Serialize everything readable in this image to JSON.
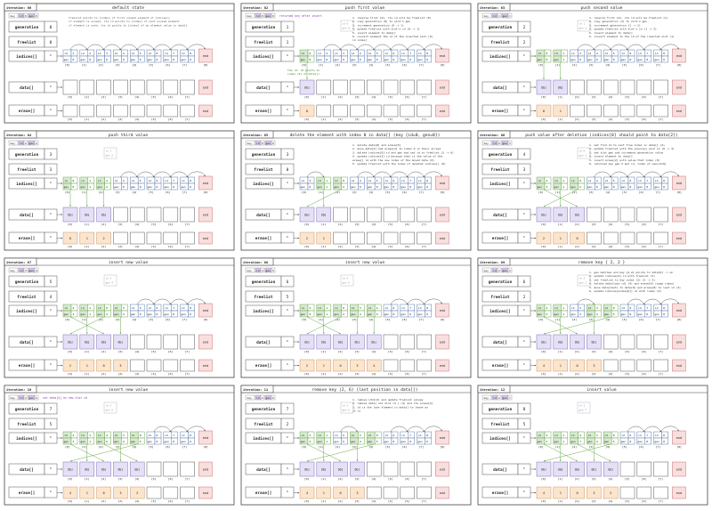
{
  "labels": {
    "generation": "generation",
    "freelist": "freelist",
    "indices": "indices[]",
    "data": "data[]",
    "erase": "erase[]",
    "end": "end",
    "key": "key",
    "id": "id",
    "gen": "gen",
    "obj": "Obj"
  },
  "colors": {
    "green_fill": "#d9ead3",
    "green_stroke": "#6aa84f",
    "purple_fill": "#e6e0f7",
    "purple_stroke": "#7f6fb5",
    "orange_fill": "#fce5cd",
    "orange_stroke": "#c9956b",
    "pink_fill": "#f9dede",
    "pink_stroke": "#cc6f6f",
    "key_purple": "#d9c6f0",
    "note_purple": "#8e44ad",
    "note_green": "#38761d",
    "grey_text": "#999999"
  },
  "panels": [
    {
      "iteration": "iteration: 00",
      "title": "default state",
      "key": {
        "id": "id",
        "idval": "0",
        "gen": "gen",
        "genval": "0"
      },
      "generation": "0",
      "freelist": "0",
      "note": "freelist points to [index] of first unused element of indices[]\n if element is unused, its id points to [index] of next unused element\n if element is used, its id points to [index] of an element value in data[]",
      "note_color": "#555555",
      "used": 0,
      "indices": [
        {
          "id": "1",
          "gen": "0"
        },
        {
          "id": "2",
          "gen": "0"
        },
        {
          "id": "3",
          "gen": "0"
        },
        {
          "id": "4",
          "gen": "0"
        },
        {
          "id": "5",
          "gen": "0"
        },
        {
          "id": "6",
          "gen": "0"
        },
        {
          "id": "7",
          "gen": "0"
        },
        {
          "id": "8",
          "gen": "0"
        }
      ],
      "indices_green": [],
      "data_count": 0,
      "erase": []
    },
    {
      "iteration": "iteration: 02",
      "title": "push first value",
      "key": {
        "id": "id",
        "idval": "0",
        "gen": "gen",
        "genval": "0"
      },
      "key_note": "returned key after insert",
      "generation": "1",
      "freelist": "1",
      "side_key": {
        "id": "id",
        "idval": "0",
        "gen": "gen",
        "genval": "0"
      },
      "note": "1. reserve first idx, its id will be freelist (0)\n2. copy generation (0) to slot's gen\n3. increment generation (0 -> 1)\n4. update freelist with slot's id (0 -> 1)\n5. insert element to data[]\n6. convert element the id of the inserted slot (0)\n   id index]",
      "note_color": "#333333",
      "green_note": "the id: (0 points to\nindex (0) of data[])",
      "indices": [
        {
          "id": "0",
          "gen": "0"
        },
        {
          "id": "2",
          "gen": "0"
        },
        {
          "id": "3",
          "gen": "0"
        },
        {
          "id": "4",
          "gen": "0"
        },
        {
          "id": "5",
          "gen": "0"
        },
        {
          "id": "6",
          "gen": "0"
        },
        {
          "id": "7",
          "gen": "0"
        },
        {
          "id": "8",
          "gen": "0"
        }
      ],
      "indices_green": [
        0
      ],
      "data_count": 1,
      "erase": [
        "0"
      ]
    },
    {
      "iteration": "iteration: 03",
      "title": "push second value",
      "key": {
        "id": "id",
        "idval": "1",
        "gen": "gen",
        "genval": "1"
      },
      "generation": "2",
      "freelist": "2",
      "side_key": {
        "id": "id",
        "idval": "1",
        "gen": "gen",
        "genval": "1"
      },
      "note": "1. reserve first idx, its id will be freelist (1)\n2. copy generation (1) to slot's gen\n3. increment generation (1 -> 2)\n4. update freelist with slot's id (1 -> 2)\n5. insert element to data[]\n6. convert element to the id of the inserted slot (1)",
      "note_color": "#333333",
      "indices": [
        {
          "id": "0",
          "gen": "0"
        },
        {
          "id": "1",
          "gen": "1"
        },
        {
          "id": "3",
          "gen": "0"
        },
        {
          "id": "4",
          "gen": "0"
        },
        {
          "id": "5",
          "gen": "0"
        },
        {
          "id": "6",
          "gen": "0"
        },
        {
          "id": "7",
          "gen": "0"
        },
        {
          "id": "8",
          "gen": "0"
        }
      ],
      "indices_green": [
        0,
        1
      ],
      "data_count": 2,
      "erase": [
        "0",
        "1"
      ]
    },
    {
      "iteration": "iteration: 04",
      "title": "push third value",
      "key": {
        "id": "id",
        "idval": "2",
        "gen": "gen",
        "genval": "2"
      },
      "generation": "3",
      "freelist": "3",
      "side_key": {
        "id": "id",
        "idval": "2",
        "gen": "gen",
        "genval": "2"
      },
      "note": "",
      "note_color": "#333333",
      "indices": [
        {
          "id": "0",
          "gen": "0"
        },
        {
          "id": "1",
          "gen": "1"
        },
        {
          "id": "2",
          "gen": "2"
        },
        {
          "id": "4",
          "gen": "0"
        },
        {
          "id": "5",
          "gen": "0"
        },
        {
          "id": "6",
          "gen": "0"
        },
        {
          "id": "7",
          "gen": "0"
        },
        {
          "id": "8",
          "gen": "0"
        }
      ],
      "indices_green": [
        0,
        1,
        2
      ],
      "data_count": 3,
      "erase": [
        "0",
        "1",
        "2"
      ]
    },
    {
      "iteration": "iteration: 05",
      "title": "delete the element with index 0 in data[] (key {id=0, gen=0})",
      "key": {
        "id": "id",
        "idval": "0",
        "gen": "gen",
        "genval": "0"
      },
      "generation": "3",
      "freelist": "0",
      "note": "1. delete data[0] and erase[0]\n2. move data[2] and erase[2] to index 0 in their arrays\n3. delete indices[0] id and gen and set id to freelist (3 -> 0)\n4. update indices[2] id because that is the value of the\n   erase[] id with the new index of the moved data (0)\n5. update freelist with the index of deleted indices[] (0)",
      "note_color": "#333333",
      "indices": [
        {
          "id": "3",
          "gen": "0"
        },
        {
          "id": "1",
          "gen": "1"
        },
        {
          "id": "0",
          "gen": "2"
        },
        {
          "id": "4",
          "gen": "0"
        },
        {
          "id": "5",
          "gen": "0"
        },
        {
          "id": "6",
          "gen": "0"
        },
        {
          "id": "7",
          "gen": "0"
        },
        {
          "id": "8",
          "gen": "0"
        }
      ],
      "indices_green": [
        1,
        2
      ],
      "data_count": 2,
      "erase": [
        "2",
        "1"
      ]
    },
    {
      "iteration": "iteration: 06",
      "title": "push value after deletion (indices[0] should point to data[2])",
      "key": {
        "id": "id",
        "idval": "0",
        "gen": "gen",
        "genval": "3"
      },
      "generation": "4",
      "freelist": "3",
      "side_key": {
        "id": "id",
        "idval": "0",
        "gen": "gen",
        "genval": "3"
      },
      "note": "1. set find id to next free index in data[] (2)\n2. update freelist with the previous slot id (0 -> 3)\n3. set slot gen and increment generation value\n4. insert element to data[]\n5. insert erase[2] with value that index (0)\n6. returned key gen-3 and id- index of new(id=0)",
      "note_color": "#333333",
      "indices": [
        {
          "id": "2",
          "gen": "3"
        },
        {
          "id": "1",
          "gen": "1"
        },
        {
          "id": "0",
          "gen": "2"
        },
        {
          "id": "4",
          "gen": "0"
        },
        {
          "id": "5",
          "gen": "0"
        },
        {
          "id": "6",
          "gen": "0"
        },
        {
          "id": "7",
          "gen": "0"
        },
        {
          "id": "8",
          "gen": "0"
        }
      ],
      "indices_green": [
        0,
        1,
        2
      ],
      "data_count": 3,
      "erase": [
        "2",
        "1",
        "0"
      ]
    },
    {
      "iteration": "iteration: 07",
      "title": "insert new value",
      "key": {
        "id": "id",
        "idval": "3",
        "gen": "gen",
        "genval": "4"
      },
      "generation": "5",
      "freelist": "4",
      "side_key": {
        "id": "id",
        "idval": "3",
        "gen": "gen",
        "genval": "4"
      },
      "note": "",
      "note_color": "#333333",
      "indices": [
        {
          "id": "2",
          "gen": "3"
        },
        {
          "id": "1",
          "gen": "1"
        },
        {
          "id": "0",
          "gen": "2"
        },
        {
          "id": "3",
          "gen": "4"
        },
        {
          "id": "5",
          "gen": "0"
        },
        {
          "id": "6",
          "gen": "0"
        },
        {
          "id": "7",
          "gen": "0"
        },
        {
          "id": "8",
          "gen": "0"
        }
      ],
      "indices_green": [
        0,
        1,
        2,
        3
      ],
      "data_count": 4,
      "erase": [
        "2",
        "1",
        "0",
        "3"
      ]
    },
    {
      "iteration": "iteration: 08",
      "title": "insert new value",
      "key": {
        "id": "id",
        "idval": "4",
        "gen": "gen",
        "genval": "5"
      },
      "generation": "6",
      "freelist": "5",
      "side_key": {
        "id": "id",
        "idval": "4",
        "gen": "gen",
        "genval": "5"
      },
      "note": "",
      "note_color": "#333333",
      "indices": [
        {
          "id": "2",
          "gen": "3"
        },
        {
          "id": "1",
          "gen": "1"
        },
        {
          "id": "0",
          "gen": "2"
        },
        {
          "id": "3",
          "gen": "4"
        },
        {
          "id": "4",
          "gen": "5"
        },
        {
          "id": "6",
          "gen": "0"
        },
        {
          "id": "7",
          "gen": "0"
        },
        {
          "id": "8",
          "gen": "0"
        }
      ],
      "indices_green": [
        0,
        1,
        2,
        3,
        4
      ],
      "data_count": 5,
      "erase": [
        "2",
        "1",
        "0",
        "3",
        "4"
      ]
    },
    {
      "iteration": "iteration: 09",
      "title": "remove key { 2, 2 }",
      "key": {
        "id": "id",
        "idval": "2",
        "gen": "gen",
        "genval": "2"
      },
      "generation": "6",
      "freelist": "2",
      "side_key": {
        "id": "id",
        "idval": "2",
        "gen": "gen",
        "genval": "2"
      },
      "note": "1. gen matches and key {2,2} points to data[0] -> ok\n2. update indices[2] id with freelist (5)\n3. set freelist to key index (2) (5 -> 2)\n4. delete data[last id] (4) and erase[4] (swap index)\n5. move data[last] to data[0] and erase[0] to last id (4)\n6. update indices[erase[0]] id with index (0)",
      "note_color": "#333333",
      "indices": [
        {
          "id": "2",
          "gen": "3"
        },
        {
          "id": "1",
          "gen": "1"
        },
        {
          "id": "5",
          "gen": "2"
        },
        {
          "id": "3",
          "gen": "4"
        },
        {
          "id": "0",
          "gen": "5"
        },
        {
          "id": "6",
          "gen": "0"
        },
        {
          "id": "7",
          "gen": "0"
        },
        {
          "id": "8",
          "gen": "0"
        }
      ],
      "indices_green": [
        0,
        1,
        3,
        4
      ],
      "data_count": 4,
      "erase": [
        "4",
        "1",
        "0",
        "3"
      ]
    },
    {
      "iteration": "iteration: 10",
      "title": "insert new value",
      "key": {
        "id": "id",
        "idval": "2",
        "gen": "gen",
        "genval": "6"
      },
      "key_note": "set data[4] as new slot id",
      "generation": "7",
      "freelist": "5",
      "side_key": {
        "id": "id",
        "idval": "2",
        "gen": "gen",
        "genval": "6"
      },
      "note": "",
      "note_color": "#333333",
      "indices": [
        {
          "id": "2",
          "gen": "3"
        },
        {
          "id": "1",
          "gen": "1"
        },
        {
          "id": "4",
          "gen": "6"
        },
        {
          "id": "3",
          "gen": "4"
        },
        {
          "id": "0",
          "gen": "5"
        },
        {
          "id": "6",
          "gen": "0"
        },
        {
          "id": "7",
          "gen": "0"
        },
        {
          "id": "8",
          "gen": "0"
        }
      ],
      "indices_green": [
        0,
        1,
        2,
        3,
        4
      ],
      "data_count": 5,
      "erase": [
        "4",
        "1",
        "0",
        "3",
        "2"
      ]
    },
    {
      "iteration": "iteration: 11",
      "title": "remove key (2, 6) (last position in data[])",
      "key": {
        "id": "id",
        "idval": "2",
        "gen": "gen",
        "genval": "6"
      },
      "generation": "7",
      "freelist": "2",
      "side_key": {
        "id": "id",
        "idval": "2",
        "gen": "gen",
        "genval": "6"
      },
      "note": "1. remove id=2(2) and update freelist values\n2. remove data[ old slot id ] (4) and its erase[4]\n3. id is the last element in data[] to leave as\n   it is",
      "note_color": "#333333",
      "indices": [
        {
          "id": "2",
          "gen": "3"
        },
        {
          "id": "1",
          "gen": "1"
        },
        {
          "id": "5",
          "gen": "6"
        },
        {
          "id": "3",
          "gen": "4"
        },
        {
          "id": "0",
          "gen": "5"
        },
        {
          "id": "6",
          "gen": "0"
        },
        {
          "id": "7",
          "gen": "0"
        },
        {
          "id": "8",
          "gen": "0"
        }
      ],
      "indices_green": [
        0,
        1,
        3,
        4
      ],
      "data_count": 4,
      "erase": [
        "4",
        "1",
        "0",
        "3"
      ]
    },
    {
      "iteration": "iteration: 12",
      "title": "insert value",
      "key": {
        "id": "id",
        "idval": "2",
        "gen": "gen",
        "genval": "7"
      },
      "generation": "8",
      "freelist": "5",
      "side_key": {
        "id": "id",
        "idval": "2",
        "gen": "gen",
        "genval": "7"
      },
      "note": "",
      "note_color": "#333333",
      "indices": [
        {
          "id": "2",
          "gen": "3"
        },
        {
          "id": "1",
          "gen": "1"
        },
        {
          "id": "4",
          "gen": "7"
        },
        {
          "id": "3",
          "gen": "4"
        },
        {
          "id": "0",
          "gen": "5"
        },
        {
          "id": "6",
          "gen": "0"
        },
        {
          "id": "7",
          "gen": "0"
        },
        {
          "id": "8",
          "gen": "0"
        }
      ],
      "indices_green": [
        0,
        1,
        2,
        3,
        4
      ],
      "data_count": 5,
      "erase": [
        "4",
        "1",
        "0",
        "3",
        "2"
      ]
    }
  ]
}
